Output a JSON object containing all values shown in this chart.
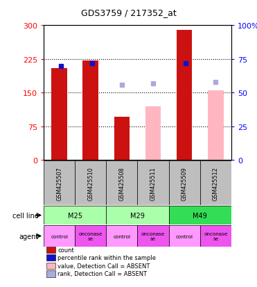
{
  "title": "GDS3759 / 217352_at",
  "samples": [
    "GSM425507",
    "GSM425510",
    "GSM425508",
    "GSM425511",
    "GSM425509",
    "GSM425512"
  ],
  "count_values": [
    205,
    222,
    97,
    null,
    289,
    null
  ],
  "rank_values": [
    70,
    72,
    null,
    null,
    72,
    null
  ],
  "count_absent": [
    null,
    null,
    null,
    120,
    null,
    155
  ],
  "rank_absent": [
    null,
    null,
    56,
    57,
    null,
    58
  ],
  "ylim_left": [
    0,
    300
  ],
  "ylim_right": [
    0,
    100
  ],
  "yticks_left": [
    0,
    75,
    150,
    225,
    300
  ],
  "yticks_right": [
    0,
    25,
    50,
    75,
    100
  ],
  "cell_lines": [
    [
      "M25",
      0,
      2
    ],
    [
      "M29",
      2,
      4
    ],
    [
      "M49",
      4,
      6
    ]
  ],
  "agents": [
    "control",
    "onconase\nse",
    "control",
    "onconase\nse",
    "control",
    "onconase\nse"
  ],
  "agent_display": [
    "control",
    "onconase\nse",
    "control",
    "onconase\nse",
    "control",
    "onconase\nse"
  ],
  "color_count": "#CC1111",
  "color_rank": "#1111CC",
  "color_count_absent": "#FFB6C1",
  "color_rank_absent": "#AAAADD",
  "color_sample_bg": "#BEBEBE",
  "color_cell_line_light": "#AAFFAA",
  "color_cell_line_dark": "#33DD55",
  "color_agent_light": "#FF99FF",
  "color_agent_dark": "#EE55EE",
  "bar_width": 0.5
}
